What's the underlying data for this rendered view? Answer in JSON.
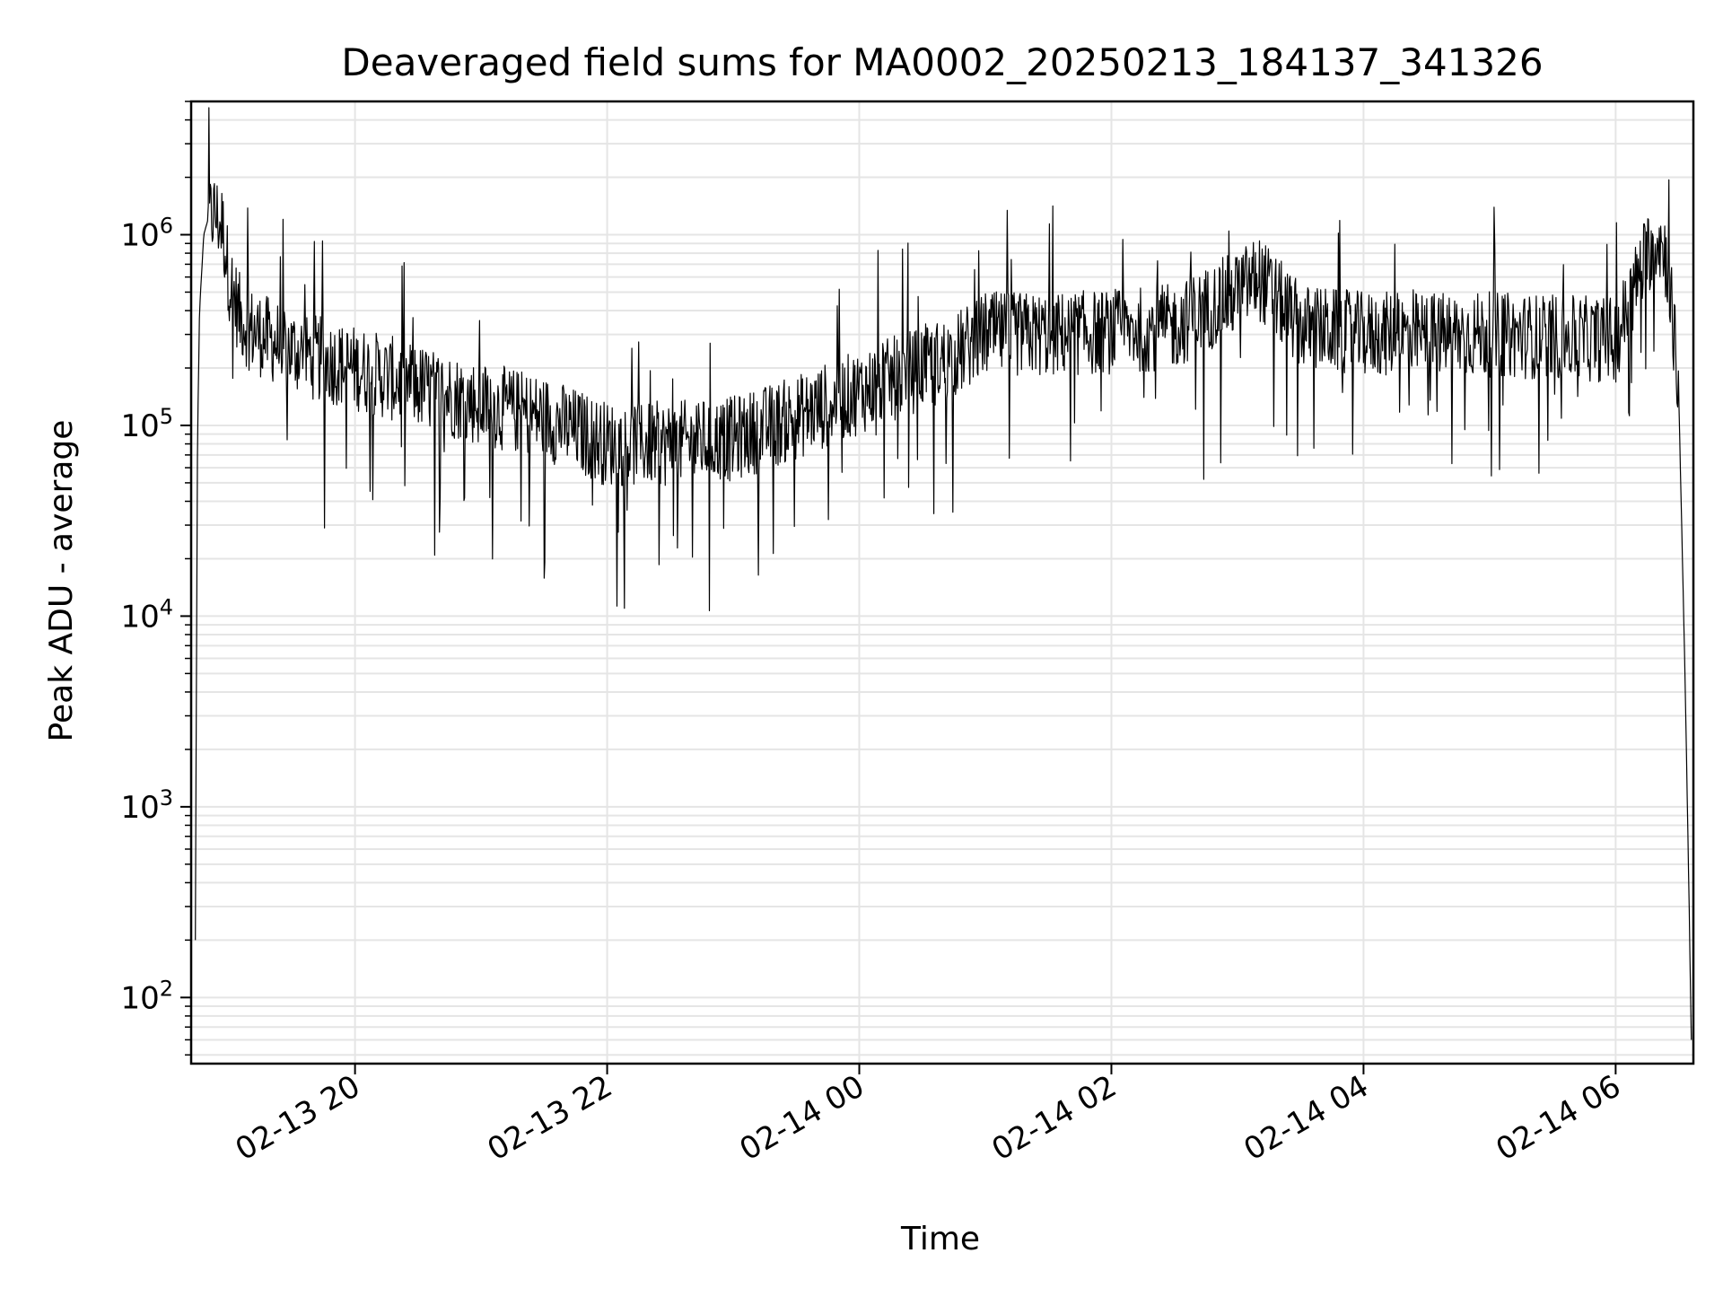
{
  "chart_data": {
    "type": "line",
    "title": "Deaveraged field sums for MA0002_20250213_184137_341326",
    "xlabel": "Time",
    "ylabel": "Peak ADU - average",
    "yscale": "log",
    "ylim": [
      45,
      5000000
    ],
    "xlim": [
      "2025-02-13 18:42",
      "2025-02-14 06:37"
    ],
    "grid": true,
    "line_color": "#000000",
    "x_ticks": [
      {
        "value": "2025-02-13 20:00",
        "label": "02-13 20"
      },
      {
        "value": "2025-02-13 22:00",
        "label": "02-13 22"
      },
      {
        "value": "2025-02-14 00:00",
        "label": "02-14 00"
      },
      {
        "value": "2025-02-14 02:00",
        "label": "02-14 02"
      },
      {
        "value": "2025-02-14 04:00",
        "label": "02-14 04"
      },
      {
        "value": "2025-02-14 06:00",
        "label": "02-14 06"
      }
    ],
    "y_ticks": [
      {
        "value": 100,
        "base": "10",
        "exp": "2"
      },
      {
        "value": 1000,
        "base": "10",
        "exp": "3"
      },
      {
        "value": 10000,
        "base": "10",
        "exp": "4"
      },
      {
        "value": 100000,
        "base": "10",
        "exp": "5"
      },
      {
        "value": 1000000,
        "base": "10",
        "exp": "6"
      }
    ],
    "series": [
      {
        "x": [
          "2025-02-13 18:44",
          "2025-02-13 18:45",
          "2025-02-13 18:46",
          "2025-02-13 18:48",
          "2025-02-13 18:50",
          "2025-02-13 18:53",
          "2025-02-13 18:57",
          "2025-02-13 19:00",
          "2025-02-13 19:05",
          "2025-02-13 19:10",
          "2025-02-13 19:20",
          "2025-02-13 19:30",
          "2025-02-13 19:45",
          "2025-02-13 20:00",
          "2025-02-13 20:30",
          "2025-02-13 21:00",
          "2025-02-13 21:30",
          "2025-02-13 22:00",
          "2025-02-13 22:30",
          "2025-02-13 23:00",
          "2025-02-13 23:30",
          "2025-02-14 00:00",
          "2025-02-14 00:30",
          "2025-02-14 00:45",
          "2025-02-14 01:00",
          "2025-02-14 01:30",
          "2025-02-14 02:00",
          "2025-02-14 02:30",
          "2025-02-14 03:00",
          "2025-02-14 03:10",
          "2025-02-14 03:30",
          "2025-02-14 04:00",
          "2025-02-14 04:30",
          "2025-02-14 05:00",
          "2025-02-14 05:30",
          "2025-02-14 06:00",
          "2025-02-14 06:15",
          "2025-02-14 06:20",
          "2025-02-14 06:25",
          "2025-02-14 06:30",
          "2025-02-14 06:33",
          "2025-02-14 06:35",
          "2025-02-14 06:36"
        ],
        "y": [
          200,
          80000,
          400000,
          1000000,
          1200000,
          1300000,
          1100000,
          600000,
          380000,
          320000,
          280000,
          250000,
          220000,
          200000,
          160000,
          130000,
          110000,
          80000,
          80000,
          85000,
          110000,
          150000,
          200000,
          230000,
          300000,
          300000,
          310000,
          330000,
          500000,
          600000,
          330000,
          300000,
          300000,
          300000,
          290000,
          280000,
          800000,
          1000000,
          700000,
          150000,
          5000,
          300,
          60
        ]
      }
    ]
  }
}
